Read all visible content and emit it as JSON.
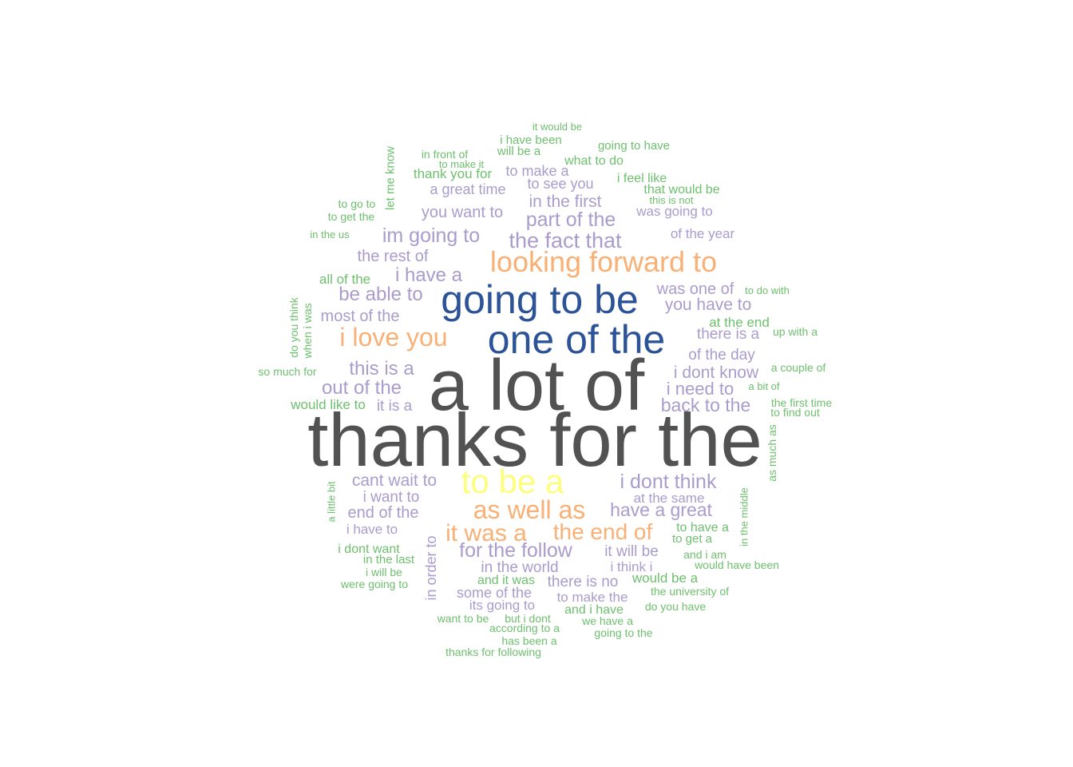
{
  "chart_data": {
    "type": "wordcloud",
    "title": "",
    "palette": {
      "tier1": "#525252",
      "tier2": "#2c5397",
      "tier3": "#fdff7c",
      "tier4": "#f9b075",
      "tier5": "#aa9ccc",
      "tier6": "#6ebf6e"
    },
    "words": [
      {
        "text": "thanks for the",
        "tier": 1
      },
      {
        "text": "a lot of",
        "tier": 1
      },
      {
        "text": "going to be",
        "tier": 2
      },
      {
        "text": "one of the",
        "tier": 2
      },
      {
        "text": "to be a",
        "tier": 3
      },
      {
        "text": "looking forward to",
        "tier": 4
      },
      {
        "text": "i love you",
        "tier": 4
      },
      {
        "text": "as well as",
        "tier": 4
      },
      {
        "text": "it was a",
        "tier": 4
      },
      {
        "text": "the end of",
        "tier": 4
      },
      {
        "text": "the fact that",
        "tier": 5
      },
      {
        "text": "part of the",
        "tier": 5
      },
      {
        "text": "im going to",
        "tier": 5
      },
      {
        "text": "i have a",
        "tier": 5
      },
      {
        "text": "be able to",
        "tier": 5
      },
      {
        "text": "this is a",
        "tier": 5
      },
      {
        "text": "out of the",
        "tier": 5
      },
      {
        "text": "i dont think",
        "tier": 5
      },
      {
        "text": "for the follow",
        "tier": 5
      },
      {
        "text": "have a great",
        "tier": 5
      },
      {
        "text": "back to the",
        "tier": 5
      },
      {
        "text": "i need to",
        "tier": 5
      },
      {
        "text": "i dont know",
        "tier": 5
      },
      {
        "text": "you have to",
        "tier": 5
      },
      {
        "text": "was one of",
        "tier": 5
      },
      {
        "text": "cant wait to",
        "tier": 5
      },
      {
        "text": "in the first",
        "tier": 5
      },
      {
        "text": "most of the",
        "tier": 5
      },
      {
        "text": "the rest of",
        "tier": 5
      },
      {
        "text": "you want to",
        "tier": 5
      },
      {
        "text": "end of the",
        "tier": 5
      },
      {
        "text": "i want to",
        "tier": 5
      },
      {
        "text": "of the day",
        "tier": 5
      },
      {
        "text": "there is a",
        "tier": 5
      },
      {
        "text": "it is a",
        "tier": 5
      },
      {
        "text": "it will be",
        "tier": 5
      },
      {
        "text": "in the world",
        "tier": 5
      },
      {
        "text": "there is no",
        "tier": 5
      },
      {
        "text": "some of the",
        "tier": 5
      },
      {
        "text": "to make the",
        "tier": 5
      },
      {
        "text": "its going to",
        "tier": 5
      },
      {
        "text": "i have to",
        "tier": 5
      },
      {
        "text": "a great time",
        "tier": 5
      },
      {
        "text": "to make a",
        "tier": 5
      },
      {
        "text": "to see you",
        "tier": 5
      },
      {
        "text": "was going to",
        "tier": 5
      },
      {
        "text": "of the year",
        "tier": 5
      },
      {
        "text": "at the same",
        "tier": 5
      },
      {
        "text": "i think i",
        "tier": 5
      },
      {
        "text": "in order to",
        "tier": 5
      },
      {
        "text": "thank you for",
        "tier": 6
      },
      {
        "text": "all of the",
        "tier": 6
      },
      {
        "text": "would like to",
        "tier": 6
      },
      {
        "text": "at the end",
        "tier": 6
      },
      {
        "text": "what to do",
        "tier": 6
      },
      {
        "text": "i have been",
        "tier": 6
      },
      {
        "text": "will be a",
        "tier": 6
      },
      {
        "text": "it would be",
        "tier": 6
      },
      {
        "text": "going to have",
        "tier": 6
      },
      {
        "text": "in front of",
        "tier": 6
      },
      {
        "text": "to make it",
        "tier": 6
      },
      {
        "text": "i feel like",
        "tier": 6
      },
      {
        "text": "that would be",
        "tier": 6
      },
      {
        "text": "this is not",
        "tier": 6
      },
      {
        "text": "let me know",
        "tier": 6
      },
      {
        "text": "to go to",
        "tier": 6
      },
      {
        "text": "to get the",
        "tier": 6
      },
      {
        "text": "in the us",
        "tier": 6
      },
      {
        "text": "to do with",
        "tier": 6
      },
      {
        "text": "up with a",
        "tier": 6
      },
      {
        "text": "do you think",
        "tier": 6
      },
      {
        "text": "when i was",
        "tier": 6
      },
      {
        "text": "so much for",
        "tier": 6
      },
      {
        "text": "a couple of",
        "tier": 6
      },
      {
        "text": "a bit of",
        "tier": 6
      },
      {
        "text": "the first time",
        "tier": 6
      },
      {
        "text": "to find out",
        "tier": 6
      },
      {
        "text": "as much as",
        "tier": 6
      },
      {
        "text": "a little bit",
        "tier": 6
      },
      {
        "text": "in the middle",
        "tier": 6
      },
      {
        "text": "to have a",
        "tier": 6
      },
      {
        "text": "to get a",
        "tier": 6
      },
      {
        "text": "and i am",
        "tier": 6
      },
      {
        "text": "would have been",
        "tier": 6
      },
      {
        "text": "i dont want",
        "tier": 6
      },
      {
        "text": "in the last",
        "tier": 6
      },
      {
        "text": "i will be",
        "tier": 6
      },
      {
        "text": "were going to",
        "tier": 6
      },
      {
        "text": "and it was",
        "tier": 6
      },
      {
        "text": "would be a",
        "tier": 6
      },
      {
        "text": "the university of",
        "tier": 6
      },
      {
        "text": "do you have",
        "tier": 6
      },
      {
        "text": "and i have",
        "tier": 6
      },
      {
        "text": "want to be",
        "tier": 6
      },
      {
        "text": "but i dont",
        "tier": 6
      },
      {
        "text": "we have a",
        "tier": 6
      },
      {
        "text": "according to a",
        "tier": 6
      },
      {
        "text": "going to the",
        "tier": 6
      },
      {
        "text": "has been a",
        "tier": 6
      },
      {
        "text": "thanks for following",
        "tier": 6
      }
    ]
  }
}
